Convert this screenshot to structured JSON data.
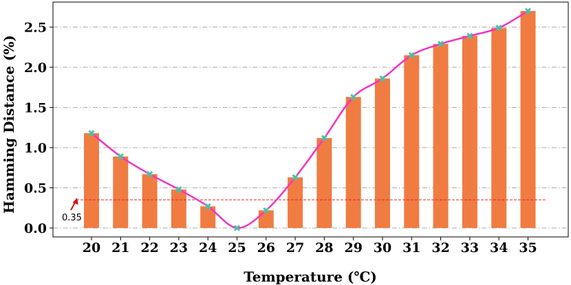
{
  "chart_data": {
    "type": "bar",
    "xlabel": "Temperature (℃)",
    "ylabel": "Hamming Distance (%)",
    "categories": [
      "20",
      "21",
      "22",
      "23",
      "24",
      "25",
      "26",
      "27",
      "28",
      "29",
      "30",
      "31",
      "32",
      "33",
      "34",
      "35"
    ],
    "values": [
      1.18,
      0.89,
      0.67,
      0.48,
      0.27,
      0.0,
      0.22,
      0.63,
      1.12,
      1.63,
      1.86,
      2.15,
      2.29,
      2.39,
      2.49,
      2.7
    ],
    "ylim": [
      -0.1,
      2.7
    ],
    "yticks": [
      "0.0",
      "0.5",
      "1.0",
      "1.5",
      "2.0",
      "2.5"
    ],
    "threshold": {
      "value": 0.35,
      "label": "0.35"
    },
    "grid": "horizontal dash-dot",
    "colors": {
      "bar": "#f07c42",
      "line": "#f433c0",
      "marker": "#4fbfa6",
      "threshold": "#e8202a",
      "arrow": "#d41414",
      "grid": "#a8a8a8"
    }
  }
}
